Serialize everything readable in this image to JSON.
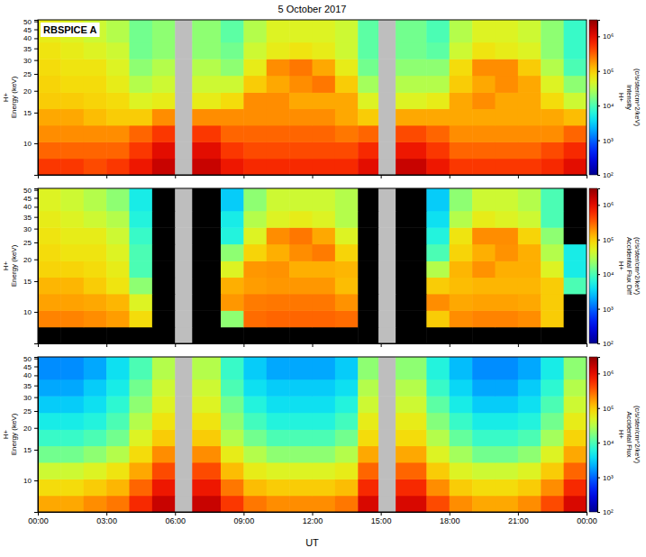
{
  "chart_data": [
    {
      "type": "heatmap",
      "title": "5 October 2017",
      "annotation": "RBSPICE A",
      "ylabel": [
        "H+",
        "Energy (keV)"
      ],
      "colorbar_label": [
        "H+",
        "Intensity",
        "(c/s/ster/cm^2/keV)"
      ],
      "x_edges": [
        0,
        1,
        2,
        3,
        4,
        5,
        6,
        6.75,
        8,
        9,
        10,
        11,
        12,
        13,
        14,
        14.9,
        15.65,
        17,
        18,
        19,
        20,
        21,
        22,
        23,
        24
      ],
      "y_edges": [
        6.6,
        8.2,
        10.2,
        12.7,
        15.8,
        19.6,
        24.5,
        30.5,
        38,
        51
      ],
      "z": [
        [
          500000.0,
          500000.0,
          400000.0,
          500000.0,
          800000.0,
          1500000.0,
          null,
          1500000.0,
          800000.0,
          600000.0,
          600000.0,
          600000.0,
          600000.0,
          600000.0,
          1000000.0,
          null,
          1500000.0,
          800000.0,
          500000.0,
          500000.0,
          500000.0,
          500000.0,
          600000.0,
          1000000.0
        ],
        [
          300000.0,
          300000.0,
          300000.0,
          300000.0,
          500000.0,
          1000000.0,
          null,
          1000000.0,
          500000.0,
          400000.0,
          400000.0,
          400000.0,
          400000.0,
          400000.0,
          600000.0,
          null,
          800000.0,
          500000.0,
          300000.0,
          300000.0,
          300000.0,
          300000.0,
          400000.0,
          600000.0
        ],
        [
          200000.0,
          200000.0,
          200000.0,
          200000.0,
          300000.0,
          500000.0,
          null,
          500000.0,
          300000.0,
          300000.0,
          300000.0,
          300000.0,
          300000.0,
          250000.0,
          300000.0,
          null,
          400000.0,
          300000.0,
          200000.0,
          200000.0,
          200000.0,
          200000.0,
          200000.0,
          300000.0
        ],
        [
          150000.0,
          150000.0,
          120000.0,
          100000.0,
          100000.0,
          200000.0,
          null,
          200000.0,
          200000.0,
          200000.0,
          200000.0,
          200000.0,
          200000.0,
          150000.0,
          100000.0,
          null,
          150000.0,
          150000.0,
          150000.0,
          150000.0,
          150000.0,
          150000.0,
          150000.0,
          120000.0
        ],
        [
          100000.0,
          100000.0,
          90000.0,
          80000.0,
          50000.0,
          60000.0,
          null,
          60000.0,
          80000.0,
          200000.0,
          200000.0,
          150000.0,
          150000.0,
          150000.0,
          50000.0,
          null,
          50000.0,
          60000.0,
          150000.0,
          200000.0,
          150000.0,
          150000.0,
          80000.0,
          40000.0
        ],
        [
          90000.0,
          80000.0,
          80000.0,
          60000.0,
          30000.0,
          40000.0,
          null,
          40000.0,
          40000.0,
          100000.0,
          150000.0,
          200000.0,
          250000.0,
          100000.0,
          25000.0,
          null,
          30000.0,
          30000.0,
          100000.0,
          150000.0,
          200000.0,
          150000.0,
          50000.0,
          20000.0
        ],
        [
          80000.0,
          70000.0,
          70000.0,
          50000.0,
          20000.0,
          30000.0,
          null,
          30000.0,
          20000.0,
          60000.0,
          200000.0,
          250000.0,
          150000.0,
          60000.0,
          15000.0,
          null,
          20000.0,
          20000.0,
          80000.0,
          200000.0,
          200000.0,
          100000.0,
          30000.0,
          10000.0
        ],
        [
          70000.0,
          60000.0,
          50000.0,
          40000.0,
          15000.0,
          20000.0,
          null,
          20000.0,
          15000.0,
          40000.0,
          60000.0,
          70000.0,
          60000.0,
          40000.0,
          12000.0,
          null,
          15000.0,
          12000.0,
          40000.0,
          70000.0,
          60000.0,
          50000.0,
          20000.0,
          8000.0
        ],
        [
          60000.0,
          50000.0,
          40000.0,
          30000.0,
          15000.0,
          20000.0,
          null,
          20000.0,
          12000.0,
          30000.0,
          50000.0,
          50000.0,
          50000.0,
          40000.0,
          12000.0,
          null,
          15000.0,
          10000.0,
          30000.0,
          50000.0,
          50000.0,
          40000.0,
          20000.0,
          8000.0
        ]
      ],
      "xlim": [
        0,
        24
      ],
      "ylim": [
        6.6,
        51
      ],
      "log": "y",
      "tick_labels": "y",
      "xticks": [
        {
          "value": 0,
          "label": "00:00"
        },
        {
          "value": 3,
          "label": "03:00"
        },
        {
          "value": 6,
          "label": "06:00"
        },
        {
          "value": 9,
          "label": "09:00"
        },
        {
          "value": 12,
          "label": "12:00"
        },
        {
          "value": 15,
          "label": "15:00"
        },
        {
          "value": 18,
          "label": "18:00"
        },
        {
          "value": 21,
          "label": "21:00"
        },
        {
          "value": 24,
          "label": "00:00"
        }
      ],
      "yticks": [
        10,
        15,
        20,
        25,
        30,
        35,
        40,
        45,
        50
      ],
      "colorbar_range": [
        100,
        3000000
      ],
      "colorbar_ticks": [
        {
          "value": 100,
          "label": "10²"
        },
        {
          "value": 1000,
          "label": "10³"
        },
        {
          "value": 10000,
          "label": "10⁴"
        },
        {
          "value": 100000,
          "label": "10⁵"
        },
        {
          "value": 1000000,
          "label": "10⁶"
        }
      ]
    },
    {
      "type": "heatmap",
      "ylabel": [
        "H+",
        "Energy (keV)"
      ],
      "colorbar_label": [
        "H+",
        "Accidental Flux Diff",
        "(c/s/ster/cm^2/keV)"
      ],
      "x_edges": [
        0,
        1,
        2,
        3,
        4,
        5,
        6,
        6.75,
        8,
        9,
        10,
        11,
        12,
        13,
        14,
        14.9,
        15.65,
        17,
        18,
        19,
        20,
        21,
        22,
        23,
        24
      ],
      "y_edges": [
        6.6,
        8.2,
        10.2,
        12.7,
        15.8,
        19.6,
        24.5,
        30.5,
        38,
        51
      ],
      "z": [
        [
          0,
          0,
          0,
          0,
          0,
          0,
          null,
          0,
          0,
          0,
          0,
          0,
          0,
          0,
          0,
          null,
          0,
          0,
          0,
          0,
          0,
          0,
          0,
          0
        ],
        [
          220000.0,
          220000.0,
          200000.0,
          170000.0,
          80000.0,
          0,
          null,
          0,
          20000.0,
          280000.0,
          300000.0,
          300000.0,
          300000.0,
          280000.0,
          0,
          null,
          0,
          100000.0,
          200000.0,
          220000.0,
          220000.0,
          200000.0,
          100000.0,
          0
        ],
        [
          160000.0,
          160000.0,
          150000.0,
          130000.0,
          50000.0,
          0,
          null,
          0,
          180000.0,
          240000.0,
          250000.0,
          250000.0,
          250000.0,
          190000.0,
          0,
          null,
          0,
          200000.0,
          150000.0,
          160000.0,
          160000.0,
          150000.0,
          100000.0,
          0
        ],
        [
          130000.0,
          130000.0,
          100000.0,
          70000.0,
          20000.0,
          0,
          null,
          0,
          140000.0,
          170000.0,
          180000.0,
          180000.0,
          180000.0,
          120000.0,
          0,
          null,
          0,
          100000.0,
          120000.0,
          130000.0,
          130000.0,
          130000.0,
          100000.0,
          10000.0
        ],
        [
          90000.0,
          90000.0,
          80000.0,
          60000.0,
          10000.0,
          0,
          null,
          0,
          50000.0,
          180000.0,
          190000.0,
          140000.0,
          140000.0,
          130000.0,
          0,
          null,
          0,
          30000.0,
          130000.0,
          190000.0,
          140000.0,
          140000.0,
          50000.0,
          5000.0
        ],
        [
          80000.0,
          70000.0,
          70000.0,
          50000.0,
          10000.0,
          0,
          null,
          0,
          20000.0,
          90000.0,
          140000.0,
          200000.0,
          240000.0,
          90000.0,
          0,
          null,
          0,
          10000.0,
          90000.0,
          140000.0,
          190000.0,
          140000.0,
          30000.0,
          5000.0
        ],
        [
          70000.0,
          60000.0,
          60000.0,
          40000.0,
          8000.0,
          0,
          null,
          0,
          6000.0,
          50000.0,
          200000.0,
          250000.0,
          150000.0,
          50000.0,
          0,
          null,
          0,
          6000.0,
          70000.0,
          200000.0,
          200000.0,
          90000.0,
          20000.0,
          0
        ],
        [
          60000.0,
          50000.0,
          40000.0,
          30000.0,
          6000.0,
          0,
          null,
          0,
          5000.0,
          30000.0,
          50000.0,
          60000.0,
          50000.0,
          30000.0,
          0,
          null,
          0,
          4000.0,
          30000.0,
          60000.0,
          50000.0,
          40000.0,
          10000.0,
          0
        ],
        [
          50000.0,
          40000.0,
          30000.0,
          20000.0,
          5000.0,
          0,
          null,
          0,
          3000.0,
          20000.0,
          40000.0,
          40000.0,
          40000.0,
          30000.0,
          0,
          null,
          0,
          3000.0,
          20000.0,
          40000.0,
          40000.0,
          30000.0,
          10000.0,
          0
        ]
      ],
      "xlim": [
        0,
        24
      ],
      "ylim": [
        6.6,
        51
      ],
      "log": "y",
      "tick_labels": "y",
      "xticks": [
        {
          "value": 0,
          "label": "00:00"
        },
        {
          "value": 3,
          "label": "03:00"
        },
        {
          "value": 6,
          "label": "06:00"
        },
        {
          "value": 9,
          "label": "09:00"
        },
        {
          "value": 12,
          "label": "12:00"
        },
        {
          "value": 15,
          "label": "15:00"
        },
        {
          "value": 18,
          "label": "18:00"
        },
        {
          "value": 21,
          "label": "21:00"
        },
        {
          "value": 24,
          "label": "00:00"
        }
      ],
      "yticks": [
        10,
        15,
        20,
        25,
        30,
        35,
        40,
        45,
        50
      ],
      "colorbar_range": [
        100,
        3000000
      ],
      "colorbar_ticks": [
        {
          "value": 100,
          "label": "10²"
        },
        {
          "value": 1000,
          "label": "10³"
        },
        {
          "value": 10000,
          "label": "10⁴"
        },
        {
          "value": 100000,
          "label": "10⁵"
        },
        {
          "value": 1000000,
          "label": "10⁶"
        }
      ]
    },
    {
      "type": "heatmap",
      "xlabel": "UT",
      "ylabel": [
        "H+",
        "Energy (keV)"
      ],
      "colorbar_label": [
        "H+",
        "Accidental Flux",
        "(c/s/ster/cm^2/keV)"
      ],
      "x_edges": [
        0,
        1,
        2,
        3,
        4,
        5,
        6,
        6.75,
        8,
        9,
        10,
        11,
        12,
        13,
        14,
        14.9,
        15.65,
        17,
        18,
        19,
        20,
        21,
        22,
        23,
        24
      ],
      "y_edges": [
        6.6,
        8.2,
        10.2,
        12.7,
        15.8,
        19.6,
        24.5,
        30.5,
        38,
        51
      ],
      "z": [
        [
          150000.0,
          150000.0,
          200000.0,
          250000.0,
          600000.0,
          1500000.0,
          null,
          1500000.0,
          500000.0,
          250000.0,
          200000.0,
          200000.0,
          200000.0,
          250000.0,
          1200000.0,
          null,
          1200000.0,
          400000.0,
          200000.0,
          150000.0,
          150000.0,
          200000.0,
          400000.0,
          1200000.0
        ],
        [
          80000.0,
          80000.0,
          100000.0,
          130000.0,
          300000.0,
          800000.0,
          null,
          800000.0,
          250000.0,
          120000.0,
          100000.0,
          100000.0,
          100000.0,
          120000.0,
          600000.0,
          null,
          600000.0,
          200000.0,
          100000.0,
          80000.0,
          80000.0,
          100000.0,
          200000.0,
          600000.0
        ],
        [
          40000.0,
          40000.0,
          50000.0,
          70000.0,
          150000.0,
          400000.0,
          null,
          400000.0,
          120000.0,
          60000.0,
          50000.0,
          50000.0,
          50000.0,
          60000.0,
          300000.0,
          null,
          300000.0,
          100000.0,
          50000.0,
          40000.0,
          40000.0,
          50000.0,
          100000.0,
          300000.0
        ],
        [
          15000.0,
          15000.0,
          20000.0,
          30000.0,
          80000.0,
          200000.0,
          null,
          200000.0,
          60000.0,
          30000.0,
          20000.0,
          20000.0,
          20000.0,
          30000.0,
          150000.0,
          null,
          150000.0,
          50000.0,
          25000.0,
          15000.0,
          15000.0,
          20000.0,
          50000.0,
          150000.0
        ],
        [
          8000.0,
          8000.0,
          10000.0,
          15000.0,
          50000.0,
          100000.0,
          null,
          100000.0,
          30000.0,
          15000.0,
          10000.0,
          10000.0,
          10000.0,
          15000.0,
          80000.0,
          null,
          80000.0,
          30000.0,
          13000.0,
          8000.0,
          8000.0,
          10000.0,
          25000.0,
          90000.0
        ],
        [
          5000.0,
          5000.0,
          6000.0,
          10000.0,
          30000.0,
          70000.0,
          null,
          70000.0,
          20000.0,
          9000.0,
          6000.0,
          6000.0,
          6000.0,
          9000.0,
          60000.0,
          null,
          60000.0,
          18000.0,
          8000.0,
          5000.0,
          5000.0,
          6000.0,
          15000.0,
          60000.0
        ],
        [
          3000.0,
          3000.0,
          4000.0,
          7000.0,
          20000.0,
          50000.0,
          null,
          50000.0,
          15000.0,
          6000.0,
          4000.0,
          4000.0,
          4000.0,
          6000.0,
          40000.0,
          null,
          40000.0,
          12000.0,
          5000.0,
          3000.0,
          3000.0,
          4000.0,
          10000.0,
          40000.0
        ],
        [
          2000.0,
          2000.0,
          3000.0,
          5000.0,
          15000.0,
          40000.0,
          null,
          40000.0,
          10000.0,
          4000.0,
          3000.0,
          3000.0,
          3000.0,
          4000.0,
          30000.0,
          null,
          30000.0,
          8000.0,
          3500.0,
          2000.0,
          2000.0,
          3000.0,
          7000.0,
          30000.0
        ],
        [
          1500.0,
          1500.0,
          2000.0,
          4000.0,
          10000.0,
          30000.0,
          null,
          30000.0,
          8000.0,
          3000.0,
          2000.0,
          2000.0,
          2000.0,
          3000.0,
          20000.0,
          null,
          20000.0,
          6000.0,
          2500.0,
          1500.0,
          1500.0,
          2000.0,
          5000.0,
          20000.0
        ]
      ],
      "xlim": [
        0,
        24
      ],
      "ylim": [
        6.6,
        51
      ],
      "log": "y",
      "xticks": [
        {
          "value": 0,
          "label": "00:00"
        },
        {
          "value": 3,
          "label": "03:00"
        },
        {
          "value": 6,
          "label": "06:00"
        },
        {
          "value": 9,
          "label": "09:00"
        },
        {
          "value": 12,
          "label": "12:00"
        },
        {
          "value": 15,
          "label": "15:00"
        },
        {
          "value": 18,
          "label": "18:00"
        },
        {
          "value": 21,
          "label": "21:00"
        },
        {
          "value": 24,
          "label": "00:00"
        }
      ],
      "yticks": [
        10,
        15,
        20,
        25,
        30,
        35,
        40,
        45,
        50
      ],
      "colorbar_range": [
        100,
        3000000
      ],
      "colorbar_ticks": [
        {
          "value": 100,
          "label": "10²"
        },
        {
          "value": 1000,
          "label": "10³"
        },
        {
          "value": 10000,
          "label": "10⁴"
        },
        {
          "value": 100000,
          "label": "10⁵"
        },
        {
          "value": 1000000,
          "label": "10⁶"
        }
      ]
    }
  ]
}
